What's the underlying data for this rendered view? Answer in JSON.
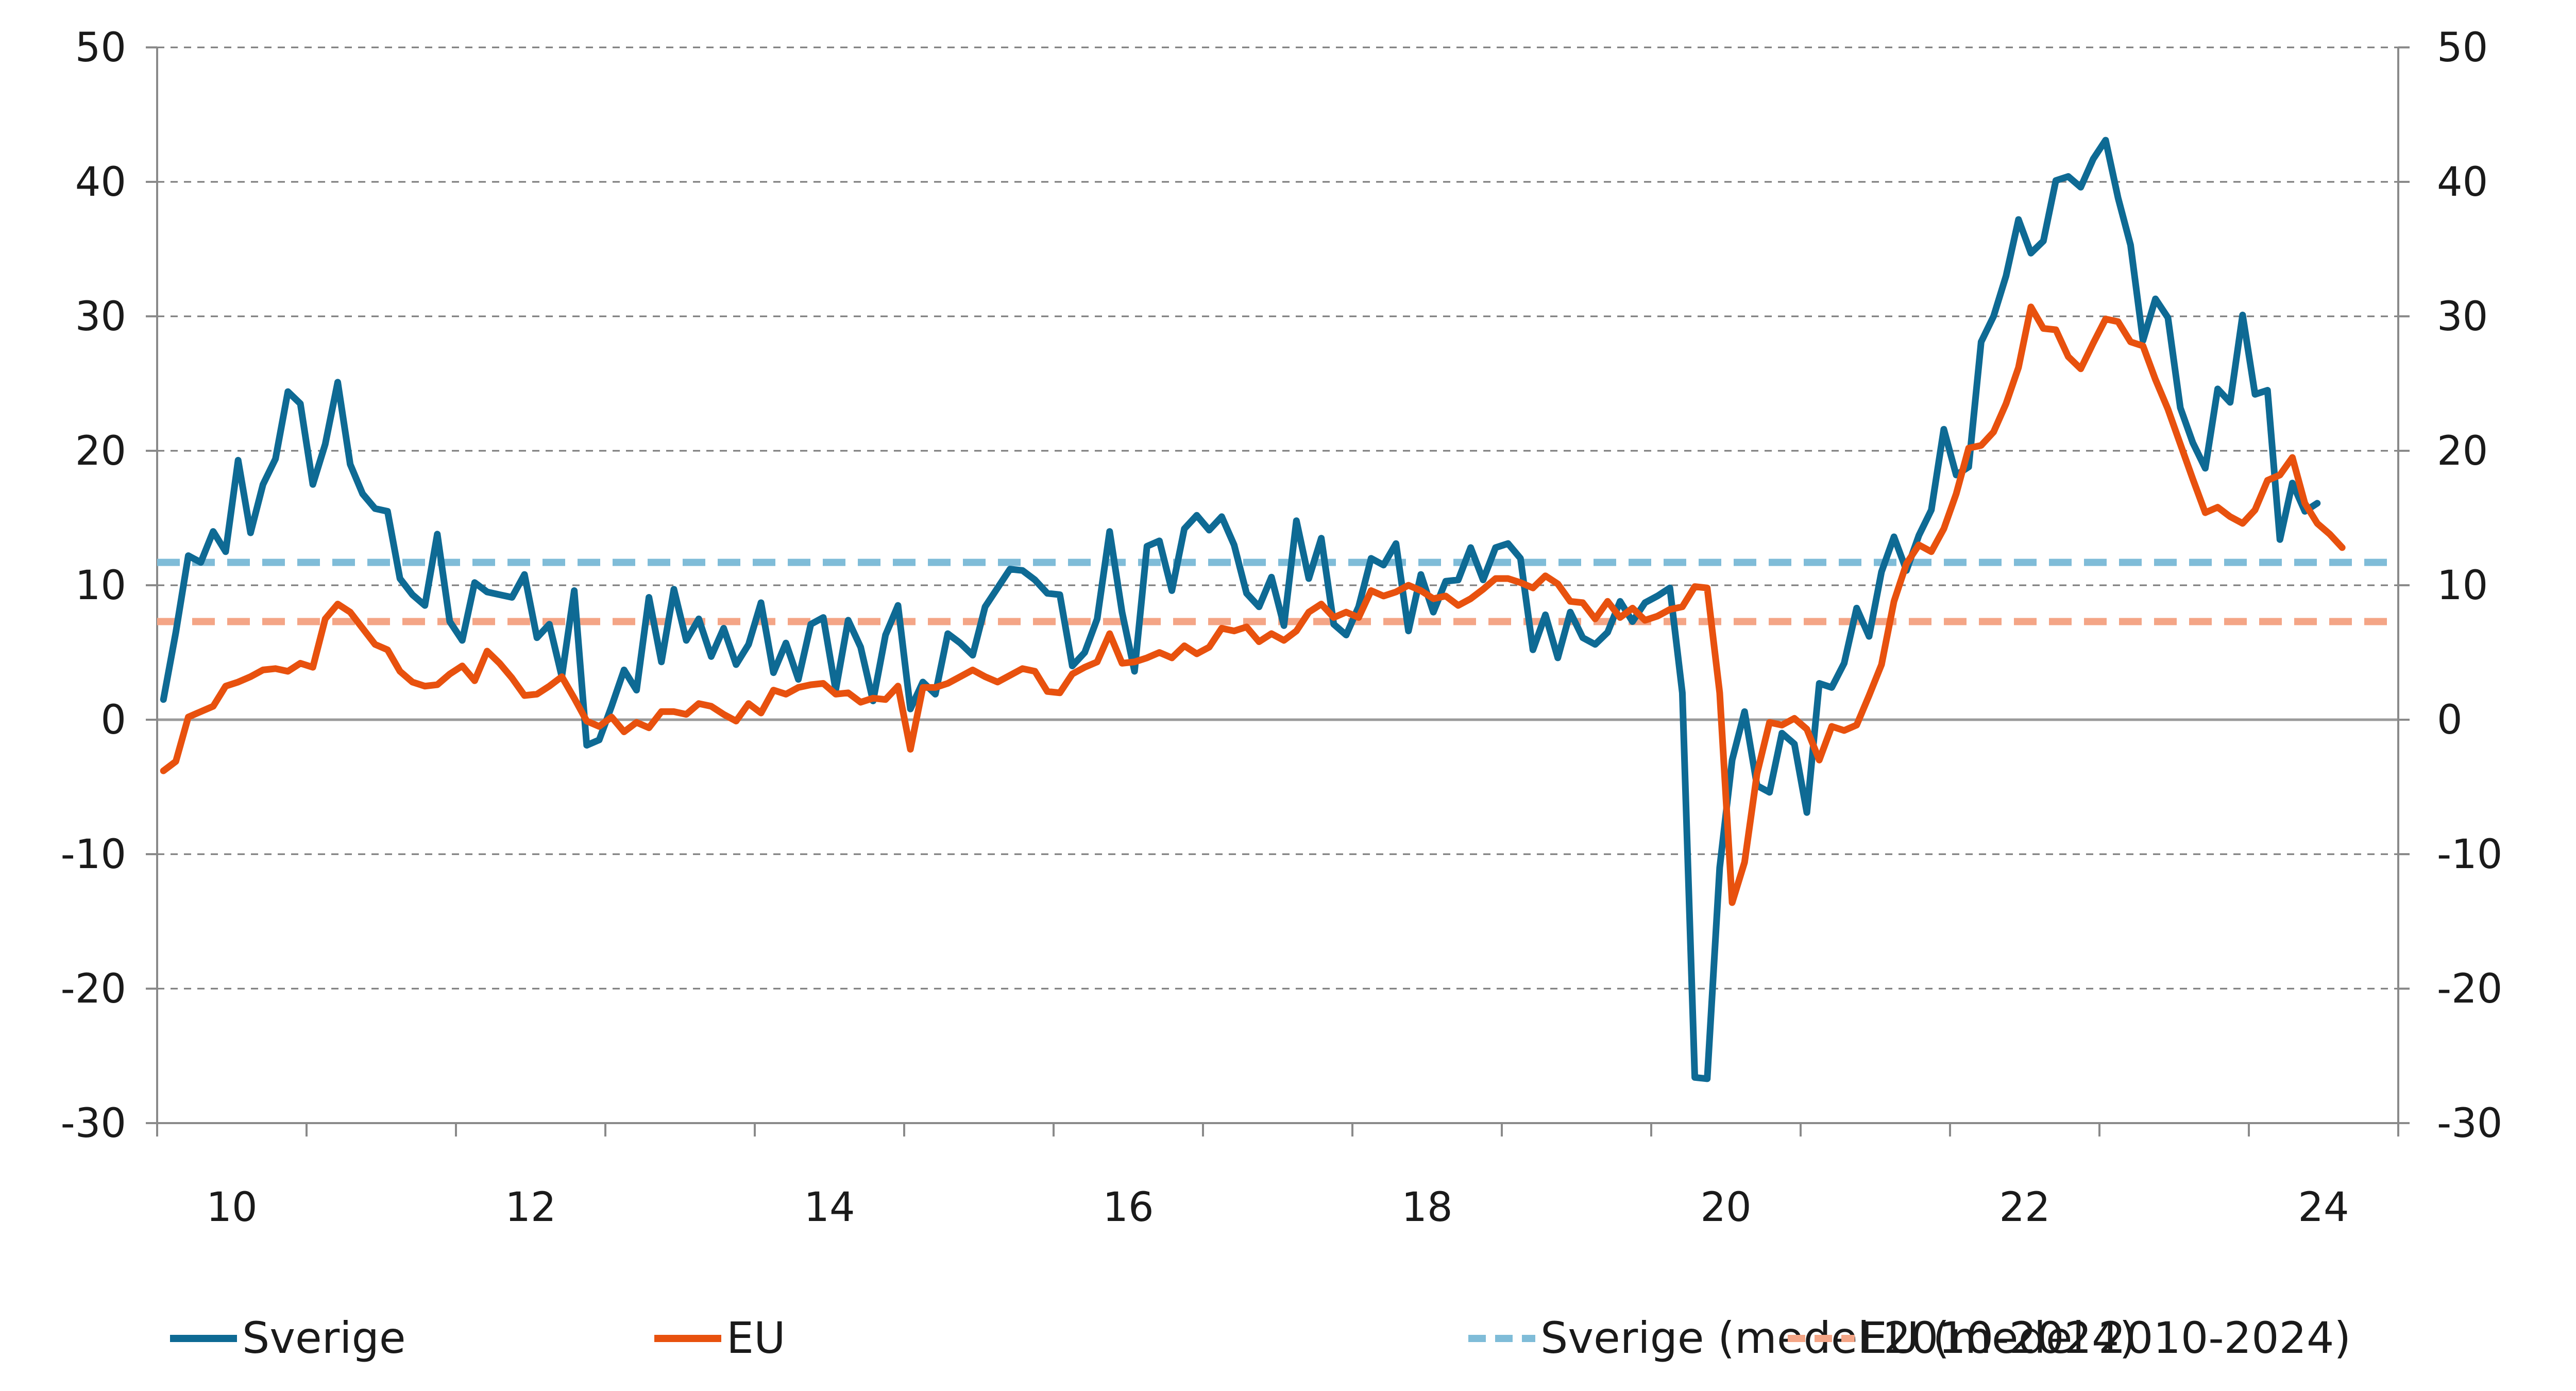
{
  "chart_data": {
    "type": "line",
    "title": "",
    "xlabel": "",
    "ylabel": "",
    "ylim": [
      -30,
      50
    ],
    "yticks": [
      "50",
      "40",
      "30",
      "20",
      "10",
      "0",
      "-10",
      "-20",
      "-30"
    ],
    "y2ticks": [
      "50",
      "40",
      "30",
      "20",
      "10",
      "0",
      "-10",
      "-20",
      "-30"
    ],
    "xlim": [
      2009.5,
      2024.5
    ],
    "xtick_positions": [
      2010,
      2011,
      2012,
      2013,
      2014,
      2015,
      2016,
      2017,
      2018,
      2019,
      2020,
      2021,
      2022,
      2023,
      2024,
      2025
    ],
    "xtick_labels": [
      {
        "label": "10",
        "year": 2010
      },
      {
        "label": "12",
        "year": 2012
      },
      {
        "label": "14",
        "year": 2014
      },
      {
        "label": "16",
        "year": 2016
      },
      {
        "label": "18",
        "year": 2018
      },
      {
        "label": "20",
        "year": 2020
      },
      {
        "label": "22",
        "year": 2022
      },
      {
        "label": "24",
        "year": 2024
      }
    ],
    "grid": "horizontal dashed",
    "legend_position": "bottom",
    "series": [
      {
        "name": "Sverige",
        "color": "#0e6a94",
        "style": "solid",
        "x_start": 2009.542,
        "x_step": 0.08333,
        "values": [
          1.5,
          6.5,
          12.2,
          11.7,
          14.0,
          12.5,
          19.3,
          13.9,
          17.5,
          19.4,
          24.4,
          23.5,
          17.5,
          20.5,
          25.1,
          19.0,
          16.8,
          15.7,
          15.5,
          10.5,
          9.3,
          8.5,
          13.8,
          7.3,
          5.9,
          10.2,
          9.5,
          9.3,
          9.1,
          10.8,
          6.1,
          7.1,
          3.2,
          9.6,
          -1.9,
          -1.5,
          1.0,
          3.7,
          2.2,
          9.1,
          4.3,
          9.7,
          5.9,
          7.5,
          4.7,
          6.8,
          4.1,
          5.6,
          8.7,
          3.5,
          5.7,
          3.0,
          7.1,
          7.6,
          2.2,
          7.4,
          5.4,
          1.4,
          6.3,
          8.5,
          0.8,
          2.8,
          1.9,
          6.4,
          5.7,
          4.8,
          8.4,
          9.8,
          11.2,
          11.1,
          10.4,
          9.4,
          9.3,
          4.0,
          5.0,
          7.5,
          14.0,
          8.0,
          3.6,
          12.9,
          13.3,
          9.6,
          14.2,
          15.2,
          14.1,
          15.1,
          13.0,
          9.4,
          8.4,
          10.6,
          7.0,
          14.8,
          10.5,
          13.5,
          7.1,
          6.3,
          8.4,
          12.0,
          11.5,
          13.1,
          6.6,
          10.8,
          8.0,
          10.3,
          10.4,
          12.8,
          10.4,
          12.8,
          13.1,
          12.0,
          5.2,
          7.8,
          4.6,
          8.0,
          6.1,
          5.6,
          6.5,
          8.8,
          7.3,
          8.7,
          9.2,
          9.8,
          2.0,
          -26.6,
          -26.7,
          -11.0,
          -3.0,
          0.6,
          -4.9,
          -5.4,
          -1.0,
          -1.8,
          -6.9,
          2.7,
          2.4,
          4.2,
          8.3,
          6.2,
          11.0,
          13.6,
          11.1,
          13.7,
          15.6,
          21.6,
          18.2,
          18.8,
          28.1,
          30.0,
          33.0,
          37.2,
          34.7,
          35.6,
          40.1,
          40.4,
          39.6,
          41.7,
          43.1,
          38.8,
          35.3,
          28.2,
          31.3,
          29.9,
          23.2,
          20.6,
          18.7,
          24.6,
          23.6,
          30.1,
          24.2,
          24.5,
          13.4,
          17.6,
          15.5,
          16.1
        ]
      },
      {
        "name": "EU",
        "color": "#e8510e",
        "style": "solid",
        "x_start": 2009.542,
        "x_step": 0.08333,
        "values": [
          -3.8,
          -3.1,
          0.2,
          0.6,
          1.0,
          2.5,
          2.8,
          3.2,
          3.7,
          3.8,
          3.6,
          4.2,
          3.9,
          7.5,
          8.6,
          8.0,
          6.8,
          5.6,
          5.2,
          3.6,
          2.8,
          2.5,
          2.6,
          3.4,
          4.0,
          2.9,
          5.1,
          4.2,
          3.1,
          1.8,
          1.9,
          2.5,
          3.2,
          1.6,
          -0.1,
          -0.5,
          0.2,
          -0.9,
          -0.2,
          -0.6,
          0.6,
          0.6,
          0.4,
          1.2,
          1.0,
          0.4,
          -0.1,
          1.2,
          0.5,
          2.2,
          1.9,
          2.4,
          2.6,
          2.7,
          1.9,
          2.0,
          1.3,
          1.6,
          1.5,
          2.5,
          -2.2,
          2.4,
          2.4,
          2.7,
          3.2,
          3.7,
          3.2,
          2.8,
          3.3,
          3.8,
          3.6,
          2.1,
          2.0,
          3.4,
          3.9,
          4.3,
          6.4,
          4.2,
          4.3,
          4.6,
          5.0,
          4.6,
          5.5,
          4.9,
          5.4,
          6.8,
          6.6,
          6.9,
          5.8,
          6.4,
          5.9,
          6.6,
          8.0,
          8.6,
          7.6,
          8.0,
          7.6,
          9.6,
          9.2,
          9.5,
          10.0,
          9.6,
          9.0,
          9.2,
          8.5,
          9.0,
          9.7,
          10.5,
          10.5,
          10.2,
          9.8,
          10.7,
          10.1,
          8.8,
          8.7,
          7.5,
          8.8,
          7.6,
          8.3,
          7.4,
          7.7,
          8.2,
          8.4,
          9.9,
          9.8,
          2.0,
          -13.6,
          -10.6,
          -4.0,
          -0.2,
          -0.4,
          0.1,
          -0.7,
          -3.0,
          -0.5,
          -0.8,
          -0.4,
          1.8,
          4.1,
          8.8,
          11.6,
          13.0,
          12.5,
          14.2,
          16.8,
          20.2,
          20.4,
          21.4,
          23.5,
          26.2,
          30.7,
          29.1,
          29.0,
          27.0,
          26.1,
          28.0,
          29.8,
          29.6,
          28.1,
          27.8,
          25.3,
          23.1,
          20.5,
          17.9,
          15.4,
          15.8,
          15.1,
          14.6,
          15.6,
          17.8,
          18.2,
          19.5,
          16.1,
          14.6,
          13.8,
          12.8
        ]
      },
      {
        "name": "Sverige (medel 2010-2024)",
        "color": "#7fbcd8",
        "style": "dashed",
        "value": 11.7
      },
      {
        "name": "EU (medel 2010-2024)",
        "color": "#f4a586",
        "style": "dashed",
        "value": 7.3
      }
    ]
  }
}
